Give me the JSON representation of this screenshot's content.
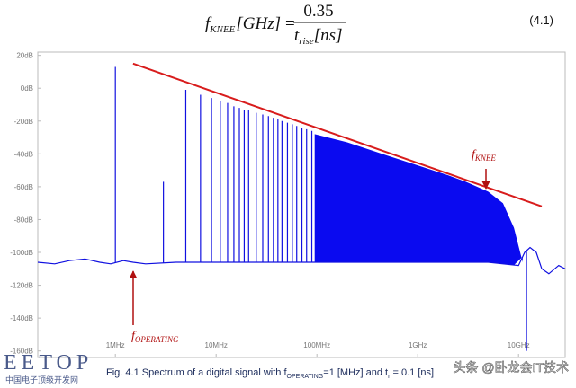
{
  "equation": {
    "lhs": "f",
    "lhs_sub": "KNEE",
    "lhs_unit": "[GHz]",
    "equals": "=",
    "numerator": "0.35",
    "denominator": "t",
    "denominator_sub": "rise",
    "denominator_unit": "[ns]",
    "number": "(4.1)"
  },
  "chart_data": {
    "type": "spectrum",
    "xscale": "log",
    "grid": false,
    "xlim": [
      170000,
      29000000000
    ],
    "ylim": [
      -164,
      22
    ],
    "xticks": [
      {
        "value": 1000000,
        "label": "1MHz"
      },
      {
        "value": 10000000,
        "label": "10MHz"
      },
      {
        "value": 100000000,
        "label": "100MHz"
      },
      {
        "value": 1000000000,
        "label": "1GHz"
      },
      {
        "value": 10000000000,
        "label": "10GHz"
      }
    ],
    "yticks": [
      {
        "value": 20,
        "label": "20dB"
      },
      {
        "value": 0,
        "label": "0dB"
      },
      {
        "value": -20,
        "label": "-20dB"
      },
      {
        "value": -40,
        "label": "-40dB"
      },
      {
        "value": -60,
        "label": "-60dB"
      },
      {
        "value": -80,
        "label": "-80dB"
      },
      {
        "value": -100,
        "label": "-100dB"
      },
      {
        "value": -120,
        "label": "-120dB"
      },
      {
        "value": -140,
        "label": "-140dB"
      },
      {
        "value": -160,
        "label": "-160dB"
      }
    ],
    "series": [
      {
        "type": "line",
        "color": "#1010e0",
        "x": [
          170000,
          250000,
          350000,
          500000,
          700000,
          900000,
          1200000,
          1500000,
          2000000,
          4000000,
          100000000,
          1000000000,
          5000000000,
          10000000000,
          11500000000,
          13000000000,
          15000000000,
          17000000000,
          20000000000,
          25000000000,
          29000000000
        ],
        "values": [
          -106,
          -107,
          -105,
          -104,
          -106,
          -107,
          -105,
          -106,
          -107,
          -106,
          -106,
          -106,
          -106,
          -108,
          -100,
          -97,
          -100,
          -110,
          -113,
          -108,
          -110
        ]
      },
      {
        "type": "stem",
        "color": "#1010e0",
        "x": [
          1000000,
          3000000,
          5000000,
          7000000,
          9000000,
          11000000,
          13000000,
          15000000,
          17000000,
          19000000,
          21000000,
          25000000,
          29000000,
          33000000,
          37000000,
          41000000,
          45000000,
          51000000,
          57000000,
          63000000,
          71000000,
          79000000,
          89000000,
          12000000000
        ],
        "values": [
          13,
          -57,
          -1,
          -4,
          -6,
          -8,
          -9,
          -11,
          -12,
          -13,
          -13,
          -15,
          -16,
          -17,
          -18,
          -19,
          -20,
          -21,
          -22,
          -23,
          -24,
          -25,
          -26,
          -160
        ]
      },
      {
        "type": "area",
        "color": "#0a0af0",
        "x": [
          95000000,
          200000000,
          500000000,
          1000000000,
          2000000000,
          3000000000,
          5000000000,
          7000000000,
          9000000000,
          11000000000
        ],
        "values": [
          -28,
          -33,
          -41,
          -47,
          -53,
          -57,
          -63,
          -70,
          -85,
          -106
        ]
      },
      {
        "type": "line",
        "color": "#d81c1c",
        "x": [
          1500000,
          17000000000
        ],
        "values": [
          15,
          -72
        ]
      }
    ],
    "annotations": [
      {
        "text": "f",
        "sub": "KNEE"
      },
      {
        "text": "f",
        "sub": "OPERATING"
      }
    ]
  },
  "caption": {
    "prefix": "Fig. 4.1 Spectrum of a digital signal with f",
    "sub1": "OPERATING",
    "middle": "=1 [MHz] and t",
    "sub2": "r",
    "suffix": " = 0.1 [ns]"
  },
  "watermarks": {
    "logo": "EETOP",
    "logo_sub": "中国电子顶级开发网",
    "author": "头条 @卧龙会IT技术"
  }
}
